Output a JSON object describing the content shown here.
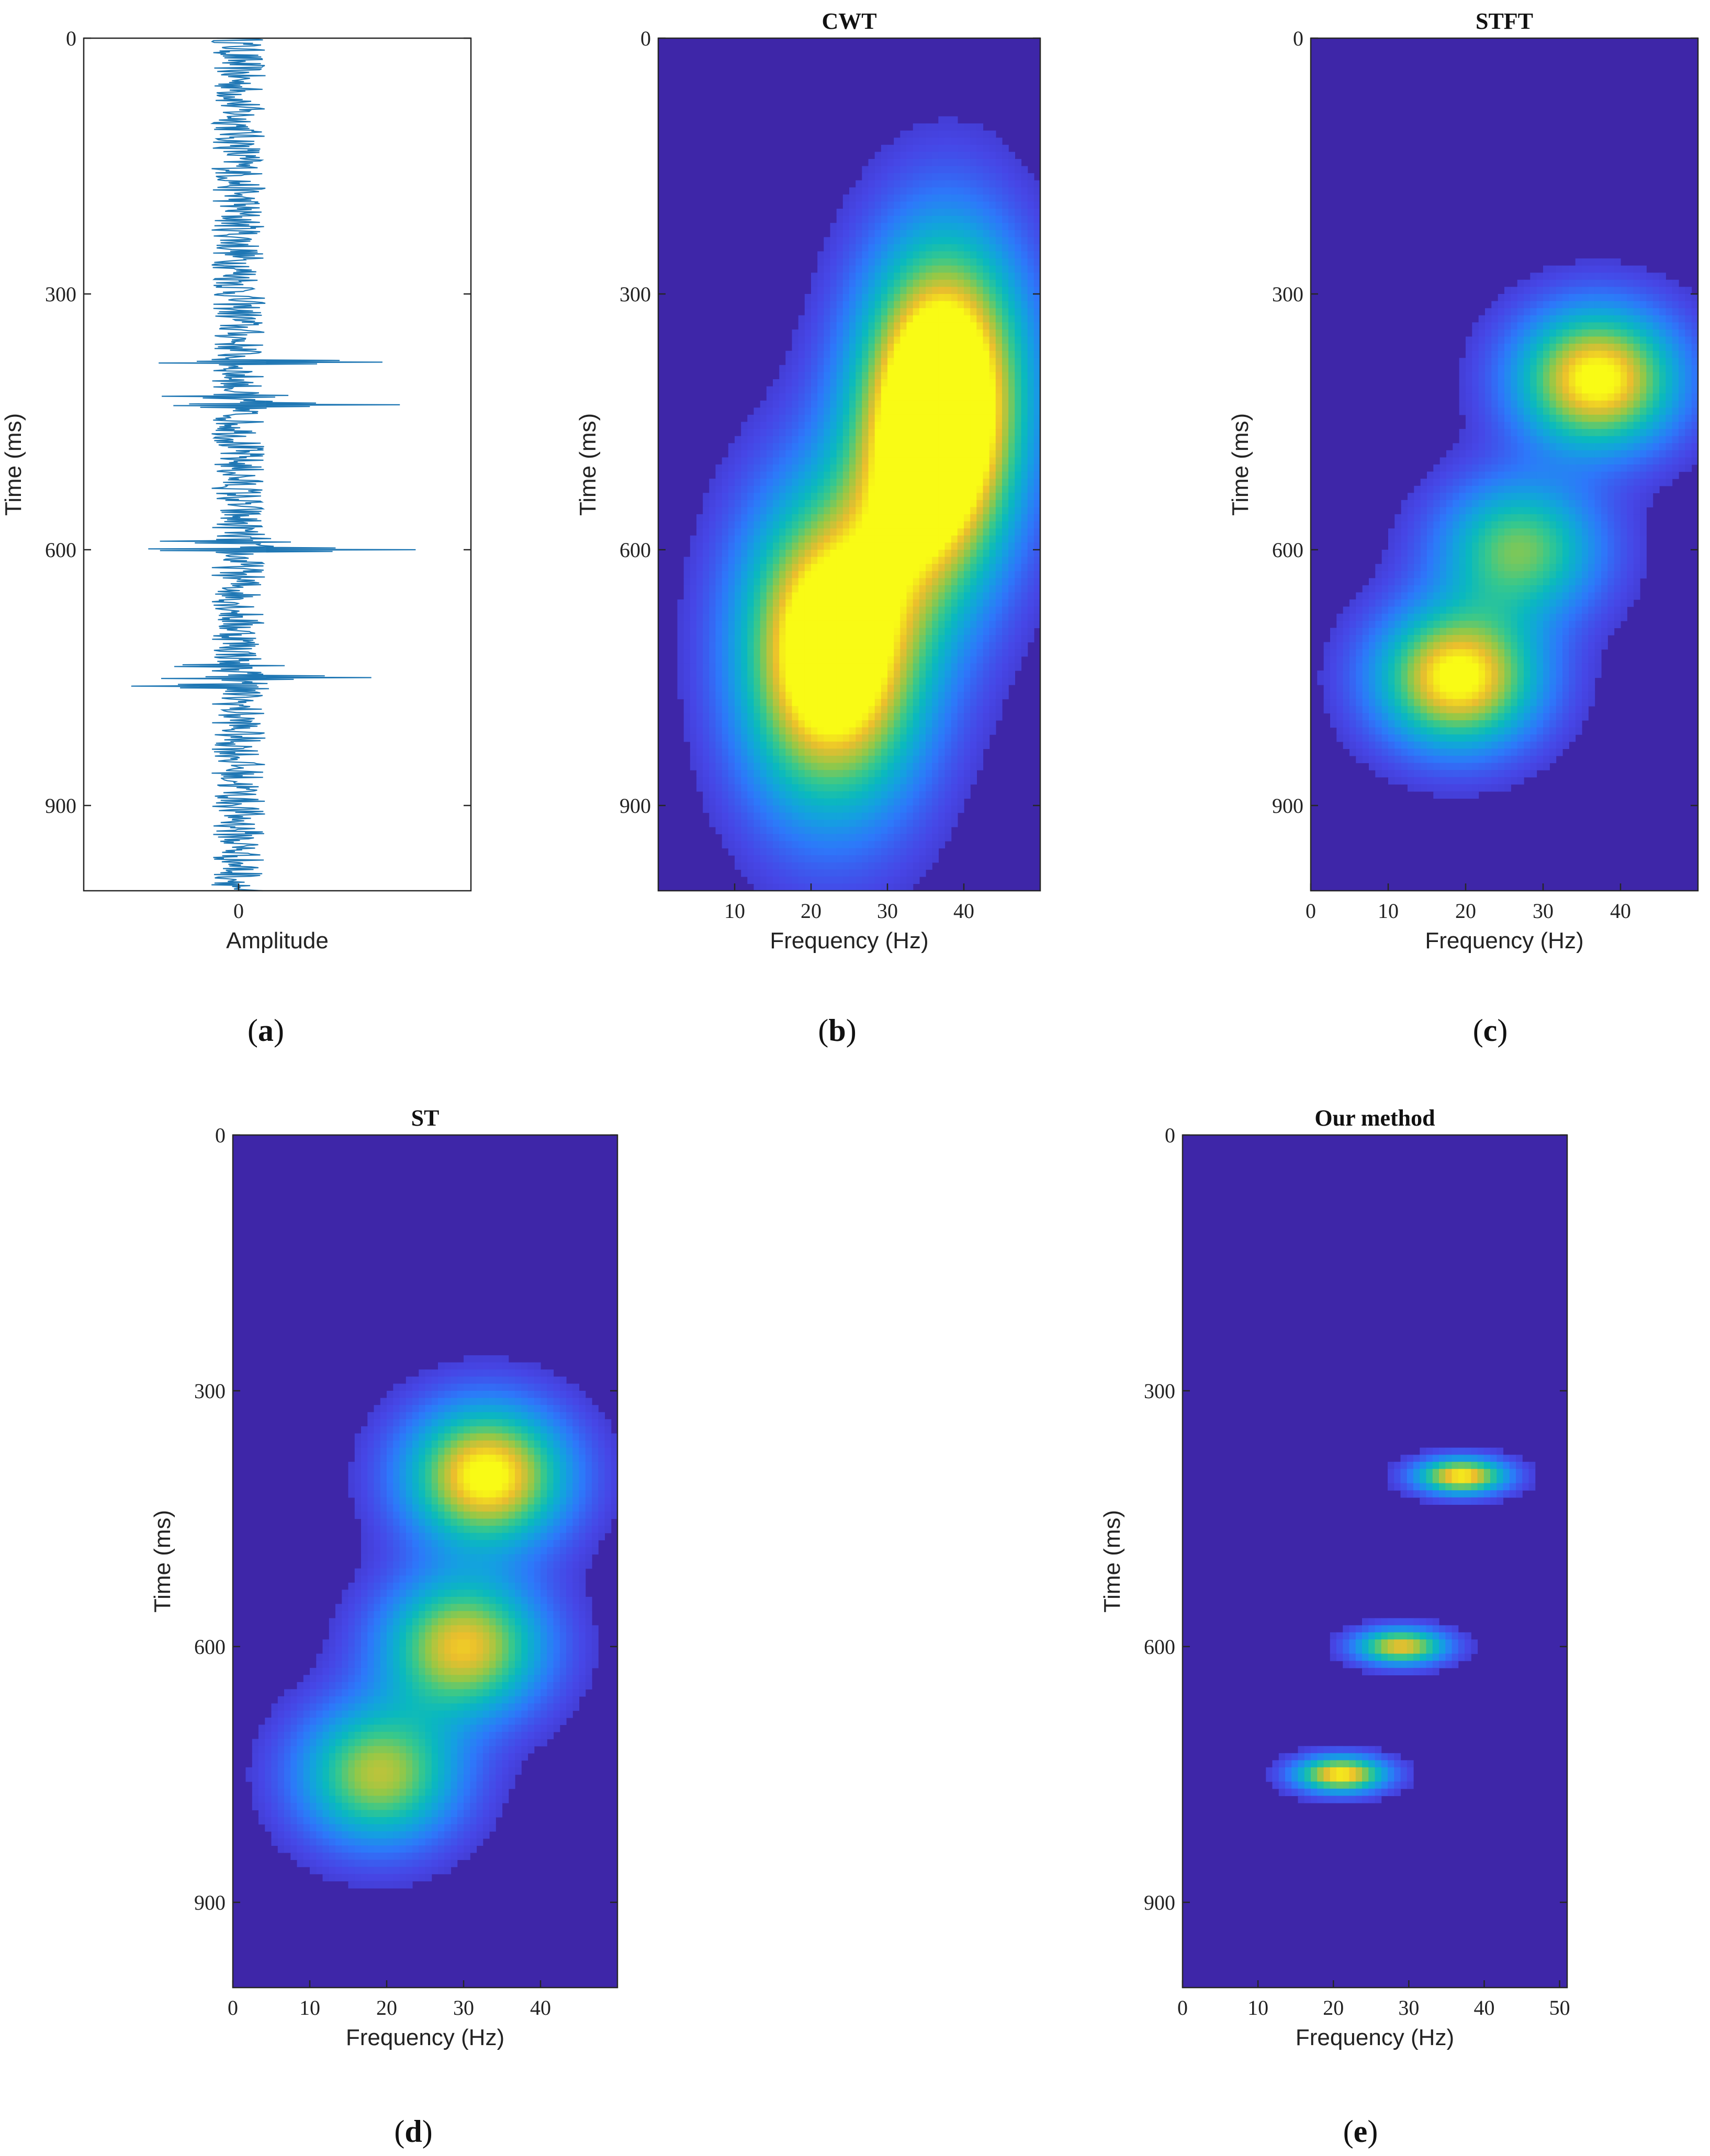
{
  "chart_data": [
    {
      "id": "a",
      "type": "line",
      "caption_letter": "a",
      "title": "",
      "xlabel": "Amplitude",
      "ylabel": "Time (ms)",
      "xticks": [
        "0"
      ],
      "yticks": [
        "0",
        "300",
        "600",
        "900"
      ],
      "ylim": [
        0,
        1000
      ],
      "series": [
        {
          "color": "#1f77b4",
          "note_points": "time (ms) vs amplitude (relative, -1..1)",
          "strong_events": [
            {
              "t": 380,
              "amp": 0.75
            },
            {
              "t": 430,
              "amp": 0.7
            },
            {
              "t": 420,
              "amp": -0.45
            },
            {
              "t": 600,
              "amp": 0.85
            },
            {
              "t": 590,
              "amp": -0.45
            },
            {
              "t": 750,
              "amp": 0.7
            },
            {
              "t": 760,
              "amp": -0.55
            },
            {
              "t": 735,
              "amp": -0.4
            }
          ]
        }
      ]
    },
    {
      "id": "b",
      "type": "heatmap",
      "caption_letter": "b",
      "title": "CWT",
      "xlabel": "Frequency (Hz)",
      "ylabel": "Time (ms)",
      "xticks": [
        "10",
        "20",
        "30",
        "40"
      ],
      "yticks": [
        "0",
        "300",
        "600",
        "900"
      ],
      "xlim": [
        0,
        50
      ],
      "ylim": [
        0,
        1000
      ],
      "colormap": "parula",
      "energy_peaks": [
        {
          "f": 38,
          "t": 400,
          "level": 0.95
        },
        {
          "f": 35,
          "t": 500,
          "level": 0.8
        },
        {
          "f": 20,
          "t": 720,
          "level": 0.85
        },
        {
          "f": 27,
          "t": 720,
          "level": 0.6
        }
      ]
    },
    {
      "id": "c",
      "type": "heatmap",
      "caption_letter": "c",
      "title": "STFT",
      "xlabel": "Frequency (Hz)",
      "ylabel": "Time (ms)",
      "xticks": [
        "0",
        "10",
        "20",
        "30",
        "40"
      ],
      "yticks": [
        "0",
        "300",
        "600",
        "900"
      ],
      "xlim": [
        0,
        50
      ],
      "ylim": [
        0,
        1000
      ],
      "colormap": "parula",
      "energy_peaks": [
        {
          "f": 37,
          "t": 400,
          "level": 1.0
        },
        {
          "f": 27,
          "t": 600,
          "level": 0.65
        },
        {
          "f": 19,
          "t": 750,
          "level": 1.0
        }
      ]
    },
    {
      "id": "d",
      "type": "heatmap",
      "caption_letter": "d",
      "title": "ST",
      "xlabel": "Frequency (Hz)",
      "ylabel": "Time (ms)",
      "xticks": [
        "0",
        "10",
        "20",
        "30",
        "40"
      ],
      "yticks": [
        "0",
        "300",
        "600",
        "900"
      ],
      "xlim": [
        0,
        50
      ],
      "ylim": [
        0,
        1000
      ],
      "colormap": "parula",
      "energy_peaks": [
        {
          "f": 33,
          "t": 400,
          "level": 1.0
        },
        {
          "f": 30,
          "t": 600,
          "level": 0.85
        },
        {
          "f": 19,
          "t": 750,
          "level": 0.75
        }
      ]
    },
    {
      "id": "e",
      "type": "heatmap",
      "caption_letter": "e",
      "title": "Our method",
      "xlabel": "Frequency (Hz)",
      "ylabel": "Time (ms)",
      "xticks": [
        "0",
        "10",
        "20",
        "30",
        "40",
        "50"
      ],
      "yticks": [
        "0",
        "300",
        "600",
        "900"
      ],
      "xlim": [
        0,
        51
      ],
      "ylim": [
        0,
        1000
      ],
      "colormap": "parula",
      "energy_peaks": [
        {
          "f": 37,
          "t": 400,
          "level": 0.95
        },
        {
          "f": 29,
          "t": 600,
          "level": 0.85
        },
        {
          "f": 21,
          "t": 750,
          "level": 0.95
        }
      ]
    }
  ]
}
